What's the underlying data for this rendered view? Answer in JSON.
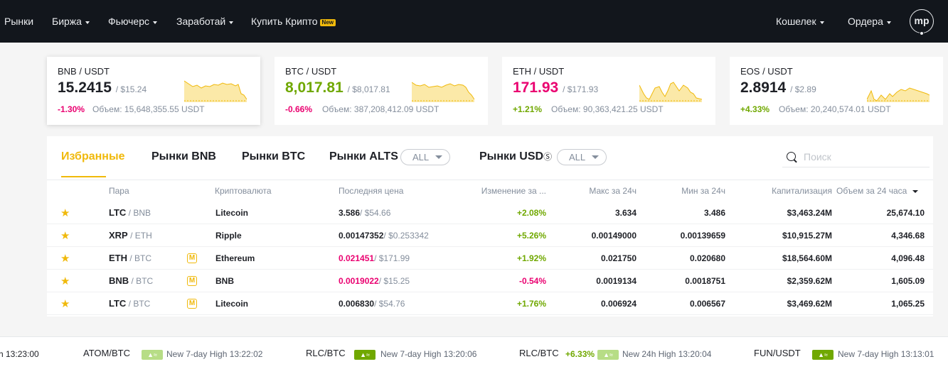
{
  "nav": {
    "left": [
      {
        "label": "Рынки",
        "caret": false
      },
      {
        "label": "Биржа",
        "caret": true
      },
      {
        "label": "Фьючерс",
        "caret": true
      },
      {
        "label": "Заработай",
        "caret": true
      },
      {
        "label": "Купить Крипто",
        "caret": false,
        "badge": "New"
      }
    ],
    "wallet": "Кошелек",
    "orders": "Ордера",
    "avatar": "mp"
  },
  "cards": [
    {
      "pair": "BNB / USDT",
      "price": "15.2415",
      "usd": "/ $15.24",
      "change": "-1.30%",
      "volume": "Объем: 15,648,355.55 USDT",
      "price_color": "#1e2026",
      "change_color": "#ea0070"
    },
    {
      "pair": "BTC / USDT",
      "price": "8,017.81",
      "usd": "/ $8,017.81",
      "change": "-0.66%",
      "volume": "Объем: 387,208,412.09 USDT",
      "price_color": "#70a800",
      "change_color": "#ea0070"
    },
    {
      "pair": "ETH / USDT",
      "price": "171.93",
      "usd": "/ $171.93",
      "change": "+1.21%",
      "volume": "Объем: 90,363,421.25 USDT",
      "price_color": "#ea0070",
      "change_color": "#70a800"
    },
    {
      "pair": "EOS / USDT",
      "price": "2.8914",
      "usd": "/ $2.89",
      "change": "+4.33%",
      "volume": "Объем: 20,240,574.01 USDT",
      "price_color": "#1e2026",
      "change_color": "#70a800"
    }
  ],
  "tabs": {
    "favorites": "Избранные",
    "bnb": "Рынки BNB",
    "btc": "Рынки BTC",
    "alts": "Рынки ALTS",
    "alts_select": "ALL",
    "usd": "Рынки USD",
    "usd_select": "ALL"
  },
  "search": {
    "placeholder": "Поиск"
  },
  "columns": {
    "pair": "Пара",
    "currency": "Криптовалюта",
    "last_price": "Последняя цена",
    "change": "Изменение за ...",
    "high": "Макс за 24ч",
    "low": "Мин за 24ч",
    "cap": "Капитализация",
    "volume": "Объем за 24 часа"
  },
  "rows": [
    {
      "base": "LTC",
      "quote": "/ BNB",
      "margin": "",
      "name": "Litecoin",
      "price": "3.586",
      "price_usd": "/ $54.66",
      "price_color": "#1e2026",
      "change": "+2.08%",
      "change_color": "#70a800",
      "high": "3.634",
      "low": "3.486",
      "cap": "$3,463.24M",
      "volume": "25,674.10"
    },
    {
      "base": "XRP",
      "quote": "/ ETH",
      "margin": "",
      "name": "Ripple",
      "price": "0.00147352",
      "price_usd": "/ $0.253342",
      "price_color": "#1e2026",
      "change": "+5.26%",
      "change_color": "#70a800",
      "high": "0.00149000",
      "low": "0.00139659",
      "cap": "$10,915.27M",
      "volume": "4,346.68"
    },
    {
      "base": "ETH",
      "quote": "/ BTC",
      "margin": "M",
      "name": "Ethereum",
      "price": "0.021451",
      "price_usd": "/ $171.99",
      "price_color": "#ea0070",
      "change": "+1.92%",
      "change_color": "#70a800",
      "high": "0.021750",
      "low": "0.020680",
      "cap": "$18,564.60M",
      "volume": "4,096.48"
    },
    {
      "base": "BNB",
      "quote": "/ BTC",
      "margin": "M",
      "name": "BNB",
      "price": "0.0019022",
      "price_usd": "/ $15.25",
      "price_color": "#ea0070",
      "change": "-0.54%",
      "change_color": "#ea0070",
      "high": "0.0019134",
      "low": "0.0018751",
      "cap": "$2,359.62M",
      "volume": "1,605.09"
    },
    {
      "base": "LTC",
      "quote": "/ BTC",
      "margin": "M",
      "name": "Litecoin",
      "price": "0.006830",
      "price_usd": "/ $54.76",
      "price_color": "#1e2026",
      "change": "+1.76%",
      "change_color": "#70a800",
      "high": "0.006924",
      "low": "0.006567",
      "cap": "$3,469.62M",
      "volume": "1,065.25"
    }
  ],
  "ticker": {
    "lead_time": "h 13:23:00",
    "items": [
      {
        "pair": "ATOM/BTC",
        "change": "",
        "badge": "light-green",
        "desc": "New 7-day High 13:22:02"
      },
      {
        "pair": "RLC/BTC",
        "change": "",
        "badge": "green",
        "desc": "New 7-day High 13:20:06"
      },
      {
        "pair": "RLC/BTC",
        "change": "+6.33%",
        "badge": "light-green",
        "desc": "New 24h High 13:20:04"
      },
      {
        "pair": "FUN/USDT",
        "change": "",
        "badge": "green",
        "desc": "New 7-day High 13:13:01"
      }
    ]
  },
  "colors": {
    "accent": "#f0b90b",
    "up": "#70a800",
    "down": "#ea0070",
    "nav_bg": "#12161c"
  },
  "icons": {
    "favorite": "star-icon",
    "search": "search-icon",
    "caret": "caret-down-icon",
    "margin": "margin-icon"
  }
}
